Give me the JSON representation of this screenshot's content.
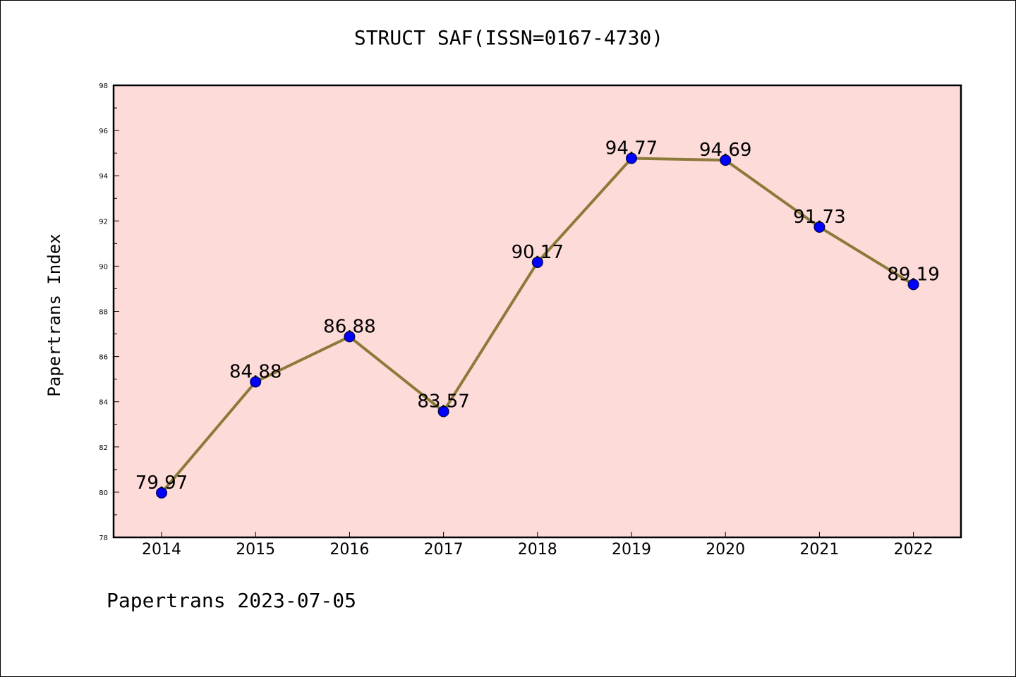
{
  "chart_data": {
    "type": "line",
    "title": "STRUCT SAF(ISSN=0167-4730)",
    "xlabel": "",
    "ylabel": "Papertrans Index",
    "categories": [
      "2014",
      "2015",
      "2016",
      "2017",
      "2018",
      "2019",
      "2020",
      "2021",
      "2022"
    ],
    "series": [
      {
        "values": [
          79.97,
          84.88,
          86.88,
          83.57,
          90.17,
          94.77,
          94.69,
          91.73,
          89.19
        ],
        "data_labels": [
          "79.97",
          "84.88",
          "86.88",
          "83.57",
          "90.17",
          "94.77",
          "94.69",
          "91.73",
          "89.19"
        ],
        "line_color": "#8c7a3a",
        "marker_color": "#0000ff"
      }
    ],
    "ylim": [
      78,
      98
    ],
    "y_ticks": [
      "78",
      "80",
      "82",
      "84",
      "86",
      "88",
      "90",
      "92",
      "94",
      "96",
      "98"
    ],
    "plot_background": "#fddbd8",
    "grid": false,
    "legend": "none"
  },
  "footer": {
    "credit": "Papertrans 2023-07-05"
  }
}
